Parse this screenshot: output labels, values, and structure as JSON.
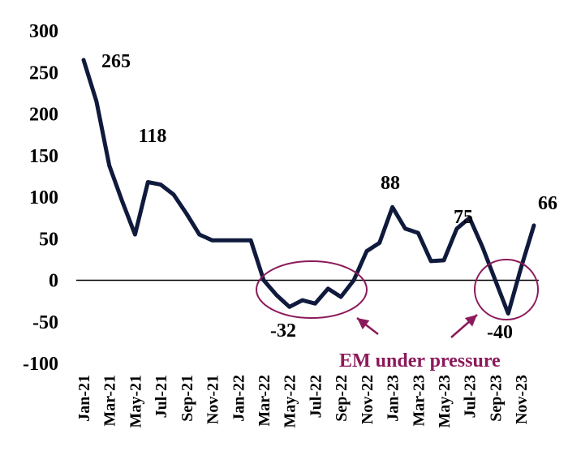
{
  "chart_data": {
    "type": "line",
    "x": [
      "Jan-21",
      "Feb-21",
      "Mar-21",
      "Apr-21",
      "May-21",
      "Jun-21",
      "Jul-21",
      "Aug-21",
      "Sep-21",
      "Oct-21",
      "Nov-21",
      "Dec-21",
      "Jan-22",
      "Feb-22",
      "Mar-22",
      "Apr-22",
      "May-22",
      "Jun-22",
      "Jul-22",
      "Aug-22",
      "Sep-22",
      "Oct-22",
      "Nov-22",
      "Dec-22",
      "Jan-23",
      "Feb-23",
      "Mar-23",
      "Apr-23",
      "May-23",
      "Jun-23",
      "Jul-23",
      "Aug-23",
      "Sep-23",
      "Oct-23",
      "Nov-23",
      "Dec-23"
    ],
    "x_tick_labels": [
      "Jan-21",
      "Mar-21",
      "May-21",
      "Jul-21",
      "Sep-21",
      "Nov-21",
      "Jan-22",
      "Mar-22",
      "May-22",
      "Jul-22",
      "Sep-22",
      "Nov-22",
      "Jan-23",
      "Mar-23",
      "May-23",
      "Jul-23",
      "Sep-23",
      "Nov-23"
    ],
    "series": [
      {
        "values": [
          265,
          215,
          138,
          95,
          55,
          118,
          115,
          103,
          80,
          55,
          48,
          48,
          48,
          48,
          0,
          -18,
          -32,
          -24,
          -28,
          -10,
          -20,
          0,
          35,
          45,
          88,
          62,
          57,
          23,
          24,
          62,
          75,
          40,
          0,
          -40,
          15,
          66
        ]
      }
    ],
    "ylim": [
      -100,
      300
    ],
    "yticks": [
      300,
      250,
      200,
      150,
      100,
      50,
      0,
      -50,
      -100
    ],
    "data_labels": [
      {
        "text": "265"
      },
      {
        "text": "118"
      },
      {
        "text": "-32"
      },
      {
        "text": "88"
      },
      {
        "text": "75"
      },
      {
        "text": "-40"
      },
      {
        "text": "66"
      }
    ],
    "annotation": {
      "text": "EM under pressure",
      "color": "#8B1A5A"
    },
    "line_color": "#0F1A3C",
    "zero_line": true,
    "grid": false
  }
}
